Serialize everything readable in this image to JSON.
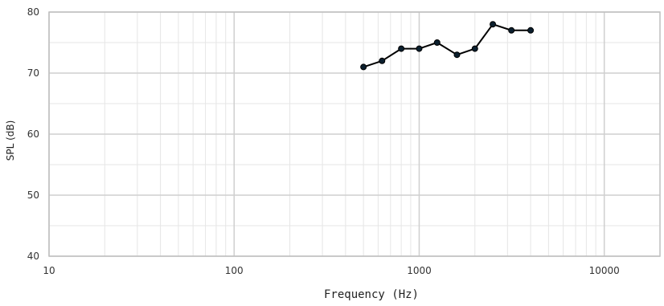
{
  "chart_data": {
    "type": "line",
    "title": "",
    "xlabel": "Frequency (Hz)",
    "ylabel": "SPL (dB)",
    "x_scale": "log",
    "xlim": [
      10,
      20000
    ],
    "ylim": [
      40,
      80
    ],
    "x_ticks": [
      10,
      100,
      1000,
      10000
    ],
    "x_tick_labels": [
      "10",
      "100",
      "1000",
      "10000"
    ],
    "y_ticks": [
      40,
      50,
      60,
      70,
      80
    ],
    "y_tick_labels": [
      "40",
      "50",
      "60",
      "70",
      "80"
    ],
    "grid": true,
    "series": [
      {
        "x": [
          500,
          630,
          800,
          1000,
          1250,
          1600,
          2000,
          2500,
          3150,
          4000
        ],
        "y": [
          71,
          72,
          74,
          74,
          75,
          73,
          74,
          78,
          77,
          77
        ],
        "color": "#000000",
        "marker_color": "#0b1f2e"
      }
    ]
  },
  "colors": {
    "grid_major": "#cfcfcf",
    "grid_minor": "#e6e6e6",
    "frame": "#bfbfbf"
  }
}
